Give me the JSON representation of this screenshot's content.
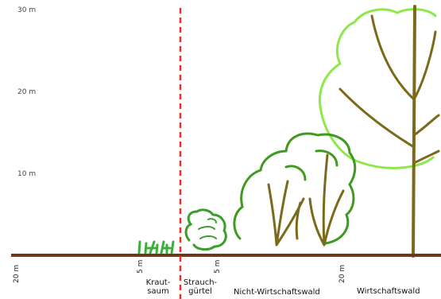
{
  "y_axis": {
    "labels": [
      "30 m",
      "20 m",
      "10 m"
    ]
  },
  "x_axis": {
    "ticks": [
      "20 m",
      "5 m",
      "5 m",
      "20 m"
    ]
  },
  "zones": {
    "krautsaum": {
      "line1": "Kraut-",
      "line2": "saum"
    },
    "strauchguertel": {
      "line1": "Strauch-",
      "line2": "gürtel"
    },
    "nicht_wirtschaftswald": {
      "label": "Nicht-Wirtschaftswald"
    },
    "wirtschaftswald": {
      "label": "Wirtschaftswald"
    }
  },
  "colors": {
    "ground": "#6b3a1e",
    "boundary": "#e8302a",
    "herb": "#3cae3c",
    "shrub": "#3a9e2a",
    "forest_crown": "#3f9a22",
    "old_crown": "#8ee84a",
    "trunk": "#7a6a1c"
  }
}
